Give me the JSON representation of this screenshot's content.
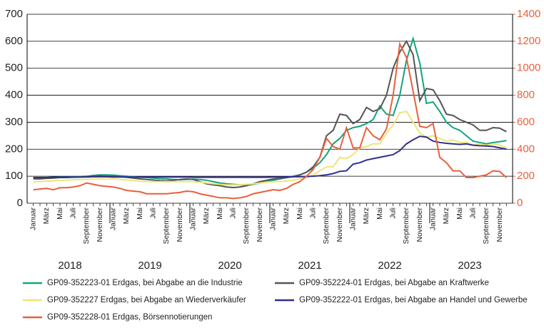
{
  "chart_data": {
    "type": "line",
    "categories": [
      "Januar",
      null,
      "März",
      null,
      "Mai",
      null,
      "Juli",
      null,
      "September",
      null,
      "November",
      null,
      "Januar",
      null,
      "März",
      null,
      "Mai",
      null,
      "Juli",
      null,
      "September",
      null,
      "November",
      null,
      "Januar",
      null,
      "März",
      null,
      "Mai",
      null,
      "Juli",
      null,
      "September",
      null,
      "November",
      null,
      "Januar",
      null,
      "März",
      null,
      "Mai",
      null,
      "Juli",
      null,
      "September",
      null,
      "November",
      null,
      "Januar",
      null,
      "März",
      null,
      "Mai",
      null,
      "Juli",
      null,
      "September",
      null,
      "November",
      null,
      "Januar",
      null,
      "März",
      null,
      "Mai",
      null,
      "Juli",
      null,
      "September",
      null,
      "November",
      null
    ],
    "years": [
      "2018",
      "2019",
      "2020",
      "2021",
      "2022",
      "2023"
    ],
    "ylim": [
      0,
      700
    ],
    "yticks": [
      0,
      100,
      200,
      300,
      400,
      500,
      600,
      700
    ],
    "y2lim": [
      0,
      1400
    ],
    "y2ticks": [
      0,
      200,
      400,
      600,
      800,
      1000,
      1200,
      1400
    ],
    "y2color": "#e8603c",
    "grid": true,
    "series": [
      {
        "name": "GP09-352223-01 Erdgas, bei Abgabe an die Industrie",
        "color": "#14a37f",
        "values": [
          95,
          95,
          95,
          96,
          97,
          97,
          98,
          99,
          100,
          103,
          105,
          105,
          104,
          102,
          100,
          98,
          96,
          95,
          93,
          91,
          90,
          88,
          87,
          88,
          89,
          88,
          85,
          80,
          75,
          72,
          70,
          68,
          67,
          70,
          75,
          80,
          85,
          90,
          95,
          100,
          105,
          115,
          130,
          150,
          180,
          220,
          240,
          270,
          280,
          285,
          295,
          310,
          360,
          330,
          325,
          400,
          530,
          610,
          520,
          370,
          375,
          340,
          300,
          280,
          270,
          250,
          230,
          225,
          220,
          225,
          228,
          232
        ]
      },
      {
        "name": "GP09-352224-01 Erdgas, bei Abgabe an Kraftwerke",
        "color": "#555555",
        "values": [
          90,
          90,
          92,
          93,
          95,
          95,
          96,
          97,
          98,
          100,
          102,
          100,
          100,
          98,
          96,
          93,
          90,
          88,
          86,
          84,
          83,
          85,
          88,
          90,
          88,
          80,
          72,
          68,
          65,
          60,
          58,
          60,
          65,
          72,
          80,
          85,
          90,
          92,
          95,
          98,
          105,
          115,
          135,
          170,
          250,
          270,
          330,
          325,
          295,
          310,
          355,
          340,
          350,
          400,
          500,
          560,
          600,
          550,
          380,
          425,
          420,
          380,
          330,
          325,
          310,
          300,
          290,
          270,
          270,
          280,
          278,
          265
        ]
      },
      {
        "name": "GP09-352227 Erdgas, bei Abgabe an Wiederverkäufer",
        "color": "#ece57a",
        "values": [
          80,
          80,
          82,
          83,
          85,
          86,
          87,
          88,
          88,
          90,
          90,
          90,
          90,
          88,
          86,
          84,
          82,
          80,
          80,
          80,
          80,
          80,
          80,
          80,
          80,
          78,
          75,
          72,
          70,
          68,
          68,
          68,
          70,
          72,
          75,
          78,
          80,
          80,
          82,
          85,
          90,
          95,
          105,
          120,
          135,
          135,
          170,
          165,
          180,
          205,
          210,
          220,
          220,
          260,
          290,
          335,
          340,
          300,
          260,
          245,
          250,
          240,
          230,
          235,
          225,
          225,
          215,
          220,
          215,
          220,
          215,
          205
        ]
      },
      {
        "name": "GP09-352222-01 Erdgas, bei Abgabe an Handel und Gewerbe",
        "color": "#2e2f8f",
        "values": [
          95,
          95,
          95,
          96,
          96,
          97,
          97,
          97,
          97,
          98,
          98,
          98,
          97,
          97,
          97,
          97,
          97,
          97,
          97,
          97,
          97,
          97,
          97,
          97,
          96,
          96,
          96,
          96,
          96,
          96,
          96,
          96,
          96,
          96,
          96,
          96,
          97,
          97,
          97,
          98,
          98,
          99,
          100,
          102,
          105,
          110,
          118,
          120,
          145,
          150,
          160,
          165,
          170,
          175,
          180,
          195,
          220,
          235,
          248,
          245,
          230,
          225,
          222,
          220,
          218,
          220,
          215,
          213,
          212,
          210,
          205,
          200
        ]
      },
      {
        "name": "GP09-352228-01 Erdgas, Börsennotierungen",
        "color": "#e8603c",
        "axis": "y2",
        "values": [
          100,
          105,
          110,
          100,
          115,
          115,
          120,
          130,
          150,
          140,
          130,
          125,
          120,
          110,
          95,
          90,
          85,
          70,
          70,
          70,
          70,
          75,
          80,
          90,
          85,
          70,
          60,
          50,
          40,
          40,
          35,
          40,
          50,
          70,
          80,
          90,
          100,
          95,
          110,
          140,
          160,
          200,
          250,
          340,
          480,
          420,
          400,
          560,
          410,
          410,
          560,
          500,
          470,
          550,
          800,
          1180,
          1080,
          830,
          570,
          560,
          590,
          340,
          300,
          240,
          240,
          190,
          190,
          200,
          210,
          240,
          235,
          190
        ]
      }
    ]
  }
}
